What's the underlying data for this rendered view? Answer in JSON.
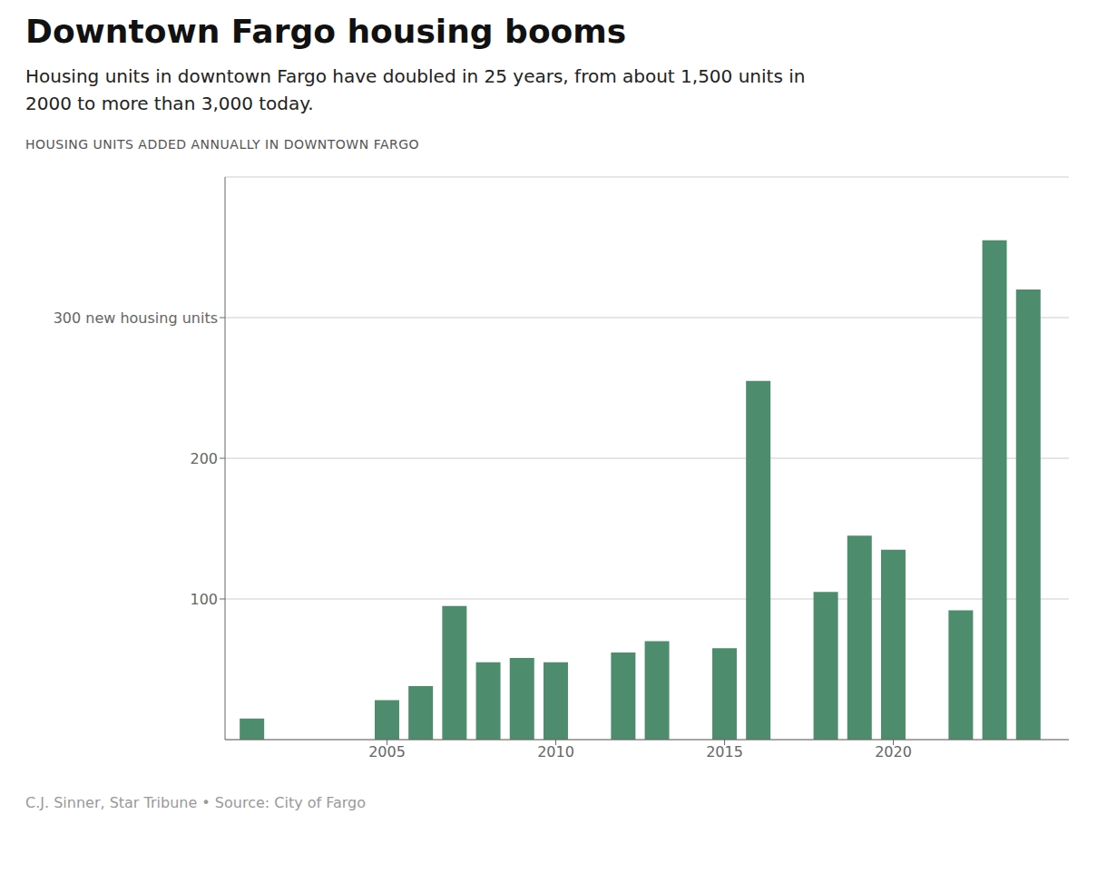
{
  "chart_data": {
    "type": "bar",
    "title": "Downtown Fargo housing booms",
    "subtitle": "Housing units in downtown Fargo have doubled in 25 years, from about 1,500 units in\n2000 to more than 3,000 today.",
    "annotations": [
      "HOUSING UNITS ADDED ANNUALLY IN DOWNTOWN FARGO",
      "C.J. Sinner, Star Tribune • Source: City of Fargo"
    ],
    "x": [
      2001,
      2002,
      2003,
      2004,
      2005,
      2006,
      2007,
      2008,
      2009,
      2010,
      2011,
      2012,
      2013,
      2014,
      2015,
      2016,
      2017,
      2018,
      2019,
      2020,
      2021,
      2022,
      2023,
      2024
    ],
    "values": [
      15,
      0,
      0,
      0,
      28,
      38,
      95,
      55,
      58,
      55,
      0,
      62,
      70,
      0,
      65,
      255,
      0,
      105,
      145,
      135,
      0,
      92,
      355,
      320
    ],
    "color": "#4e8c6e",
    "xlim": [
      2000.2,
      2025.2
    ],
    "xticks": [
      2005,
      2010,
      2015,
      2020
    ],
    "ylim": [
      0,
      400
    ],
    "yticks": [
      100,
      200,
      {
        "value": 300,
        "label": "300 new housing units"
      }
    ],
    "grid": true
  }
}
